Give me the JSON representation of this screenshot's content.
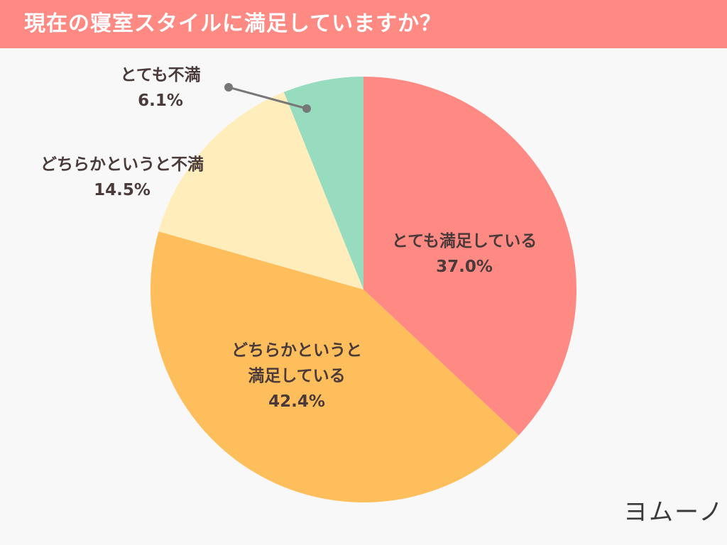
{
  "header": {
    "title": "現在の寝室スタイルに満足していますか？"
  },
  "chart_data": {
    "type": "pie",
    "title": "現在の寝室スタイルに満足していますか？",
    "start": "top, clockwise",
    "slices": [
      {
        "label": "とても満足している",
        "line1": "とても満足している",
        "line2": "",
        "value": 37.0,
        "value_label": "37.0%",
        "color": "#ff8a84"
      },
      {
        "label": "どちらかというと満足している",
        "line1": "どちらかというと",
        "line2": "満足している",
        "value": 42.4,
        "value_label": "42.4%",
        "color": "#ffbe5c"
      },
      {
        "label": "どちらかというと不満",
        "line1": "どちらかというと不満",
        "line2": "",
        "value": 14.5,
        "value_label": "14.5%",
        "color": "#ffedbc"
      },
      {
        "label": "とても不満",
        "line1": "とても不満",
        "line2": "",
        "value": 6.1,
        "value_label": "6.1%",
        "color": "#98dcc0"
      }
    ]
  },
  "logo": {
    "text": "ヨムーノ"
  }
}
